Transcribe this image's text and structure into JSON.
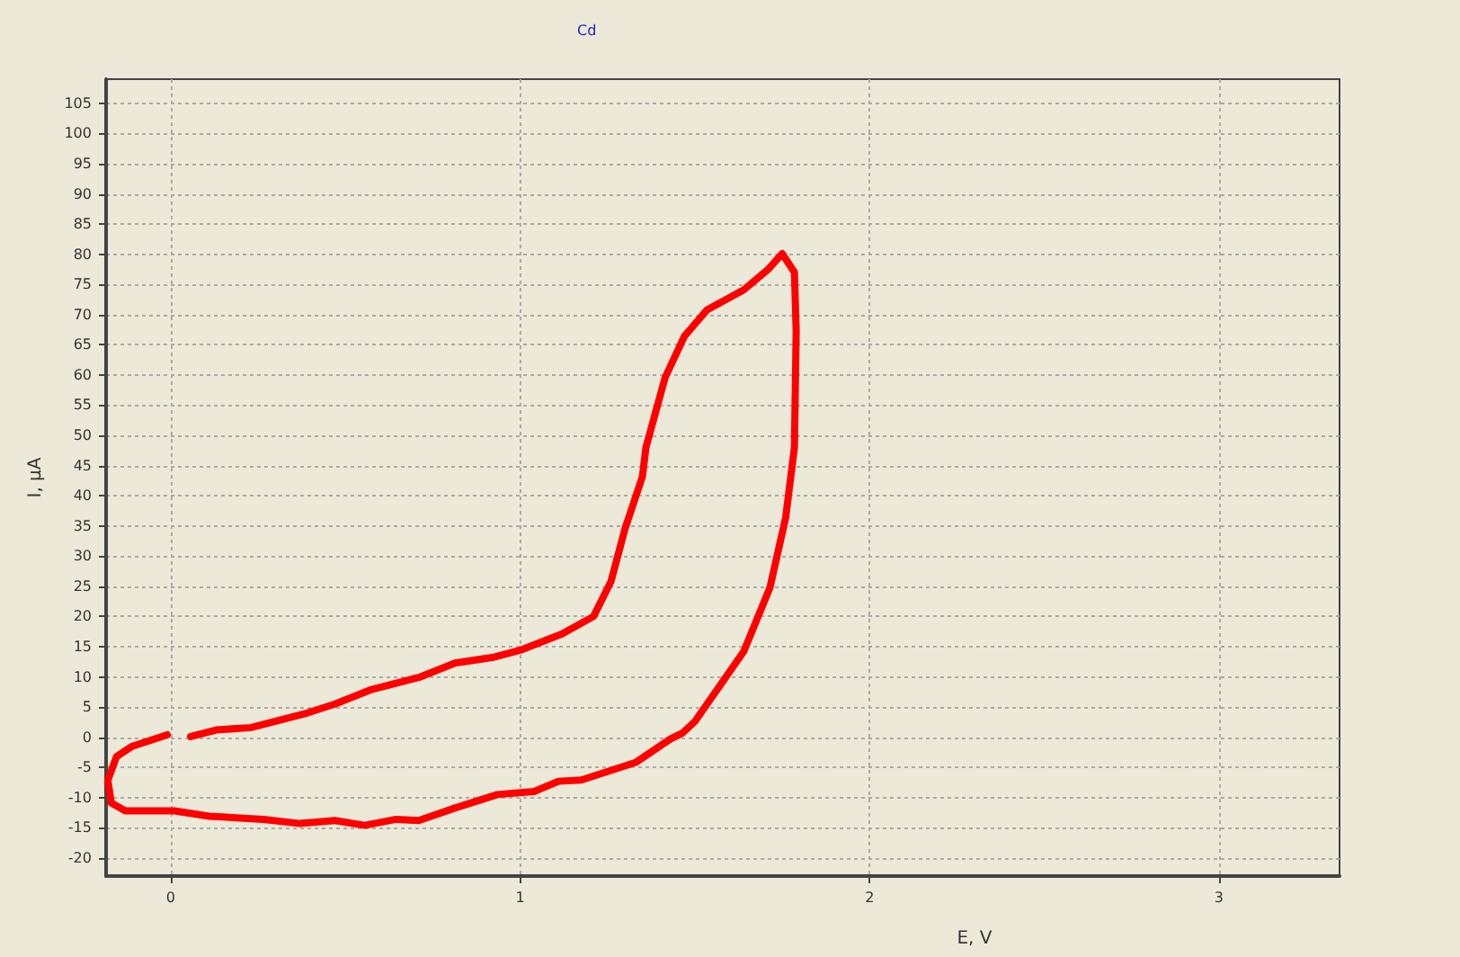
{
  "chart_data": {
    "type": "line",
    "title": "Cd",
    "xlabel": "E, V",
    "ylabel": "I, µA",
    "xlim": [
      -0.185,
      3.345
    ],
    "xticks": [
      0,
      1,
      2,
      3
    ],
    "ylim": [
      -23,
      109
    ],
    "yticks": [
      -20,
      -15,
      -10,
      -5,
      0,
      5,
      10,
      15,
      20,
      25,
      30,
      35,
      40,
      45,
      50,
      55,
      60,
      65,
      70,
      75,
      80,
      85,
      90,
      95,
      100,
      105
    ],
    "grid": true,
    "marker": "none",
    "line_style": "solid",
    "series": [
      {
        "color": "#ff0000",
        "x": [
          0.057,
          0.13,
          0.23,
          0.39,
          0.47,
          0.575,
          0.71,
          0.815,
          0.92,
          1.0,
          1.12,
          1.21,
          1.26,
          1.3,
          1.35,
          1.36,
          1.415,
          1.47,
          1.535,
          1.64,
          1.71,
          1.75,
          1.785,
          1.79,
          1.785,
          1.76,
          1.715,
          1.64,
          1.57,
          1.5,
          1.465,
          1.43,
          1.33,
          1.175,
          1.11,
          1.04,
          0.935,
          0.815,
          0.71,
          0.645,
          0.555,
          0.47,
          0.37,
          0.265,
          0.11,
          0.01,
          -0.13,
          -0.17,
          -0.18,
          -0.155,
          -0.11,
          -0.01
        ],
        "values": [
          0.1,
          1.2,
          1.6,
          4,
          5.5,
          7.9,
          9.9,
          12.3,
          13.2,
          14.4,
          17.1,
          20,
          25.8,
          34.5,
          43.2,
          48,
          59.6,
          66.4,
          70.8,
          74.1,
          77.5,
          80.1,
          77,
          67.3,
          48,
          36.4,
          24.8,
          14.2,
          8.4,
          2.6,
          0.7,
          -0.3,
          -4.2,
          -7.1,
          -7.3,
          -9,
          -9.5,
          -11.7,
          -13.8,
          -13.6,
          -14.6,
          -13.8,
          -14.3,
          -13.6,
          -13.1,
          -12.2,
          -12.2,
          -10.9,
          -7.1,
          -3.2,
          -1.5,
          0.4
        ]
      }
    ]
  }
}
